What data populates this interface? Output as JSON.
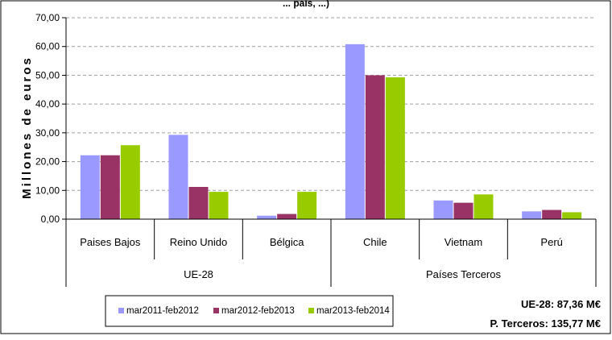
{
  "chart_data": {
    "type": "bar",
    "title_fragment": "... pais, ...)",
    "ylabel": "Millones de euros",
    "ylim": [
      0,
      70
    ],
    "yticks": [
      "0,00",
      "10,00",
      "20,00",
      "30,00",
      "40,00",
      "50,00",
      "60,00",
      "70,00"
    ],
    "grid": true,
    "legend_position": "bottom",
    "categories": [
      "Paises Bajos",
      "Reino Unido",
      "Bélgica",
      "Chile",
      "Vietnam",
      "Perú"
    ],
    "groups": [
      {
        "label": "UE-28",
        "span": [
          0,
          2
        ]
      },
      {
        "label": "Países Terceros",
        "span": [
          3,
          5
        ]
      }
    ],
    "series": [
      {
        "name": "mar2011-feb2012",
        "color": "#9999ff",
        "values": [
          22.2,
          29.3,
          1.2,
          60.8,
          6.5,
          2.7
        ]
      },
      {
        "name": "mar2012-feb2013",
        "color": "#993366",
        "values": [
          22.2,
          11.2,
          1.8,
          50.0,
          5.7,
          3.2
        ]
      },
      {
        "name": "mar2013-feb2014",
        "color": "#99cc00",
        "values": [
          25.7,
          9.5,
          9.5,
          49.3,
          8.6,
          2.4
        ]
      }
    ]
  },
  "totals": {
    "ue28": "UE-28: 87,36 M€",
    "terceros": "P. Terceros: 135,77  M€"
  }
}
